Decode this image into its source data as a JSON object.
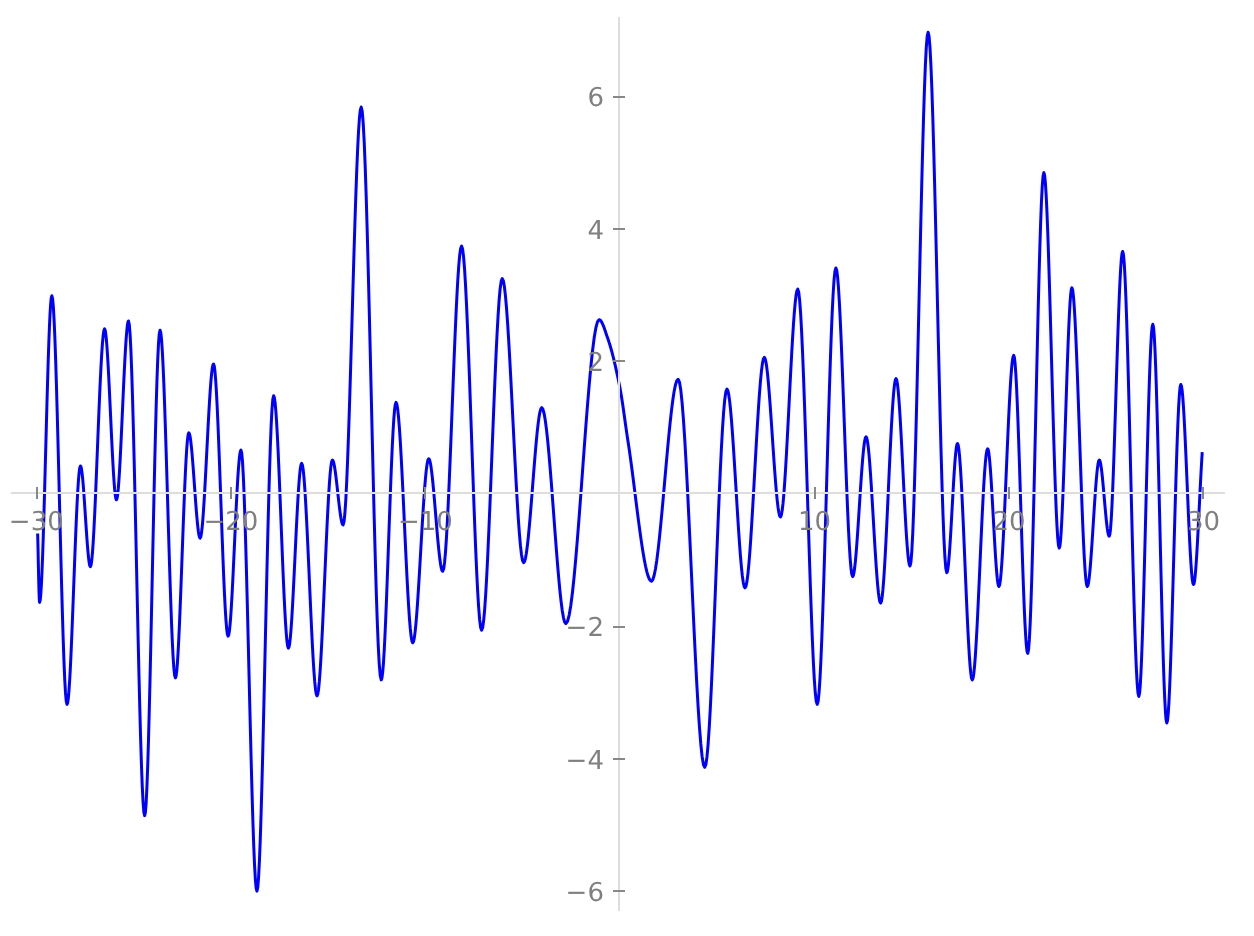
{
  "chart_data": {
    "type": "line",
    "x": [
      -29.93,
      -29.83,
      -29.2,
      -28.42,
      -27.73,
      -27.22,
      -26.49,
      -25.88,
      -25.26,
      -24.43,
      -23.64,
      -22.85,
      -22.16,
      -21.58,
      -20.89,
      -20.14,
      -19.48,
      -18.66,
      -17.8,
      -17.04,
      -16.36,
      -15.57,
      -14.78,
      -14.23,
      -13.3,
      -12.27,
      -11.51,
      -10.65,
      -9.83,
      -9.11,
      -8.14,
      -7.11,
      -6.05,
      -4.95,
      -4.02,
      -2.78,
      -1.07,
      -0.62,
      0,
      0.41,
      1.62,
      2.99,
      4.36,
      5.5,
      6.43,
      7.42,
      8.25,
      9.14,
      10.14,
      11.1,
      11.96,
      12.65,
      13.4,
      14.19,
      14.91,
      15.84,
      16.8,
      17.35,
      18.11,
      18.9,
      19.48,
      20.24,
      20.96,
      21.79,
      22.58,
      23.23,
      24.02,
      24.64,
      25.15,
      25.84,
      26.67,
      27.39,
      28.11,
      28.83,
      29.48,
      29.93
    ],
    "series": [
      {
        "color": "#0000ff",
        "values": [
          -0.6,
          -1.64,
          2.99,
          -3.18,
          0.42,
          -1.1,
          2.49,
          -0.09,
          2.61,
          -4.86,
          2.47,
          -2.78,
          0.92,
          -0.67,
          1.96,
          -2.15,
          0.66,
          -6.0,
          1.48,
          -2.33,
          0.46,
          -3.05,
          0.51,
          -0.47,
          5.84,
          -2.81,
          1.38,
          -2.25,
          0.53,
          -1.17,
          3.74,
          -2.06,
          3.25,
          -1.04,
          1.3,
          -1.96,
          2.63,
          2.34,
          1.6,
          0.8,
          -1.32,
          1.73,
          -4.13,
          1.58,
          -1.42,
          2.06,
          -0.35,
          3.09,
          -3.18,
          3.41,
          -1.25,
          0.86,
          -1.65,
          1.74,
          -1.09,
          6.97,
          -1.19,
          0.76,
          -2.81,
          0.68,
          -1.4,
          2.09,
          -2.41,
          4.85,
          -0.82,
          3.11,
          -1.4,
          0.51,
          -0.64,
          3.66,
          -3.06,
          2.56,
          -3.46,
          1.65,
          -1.37,
          0.63
        ]
      }
    ],
    "xlim": [
      -31.3,
      31.1
    ],
    "ylim": [
      -6.3,
      7.2
    ],
    "xticks": [
      -30,
      -20,
      -10,
      10,
      20,
      30
    ],
    "yticks": [
      -6,
      -4,
      -2,
      2,
      4,
      6
    ],
    "grid": false,
    "marker": "none",
    "line_style": "solid"
  }
}
